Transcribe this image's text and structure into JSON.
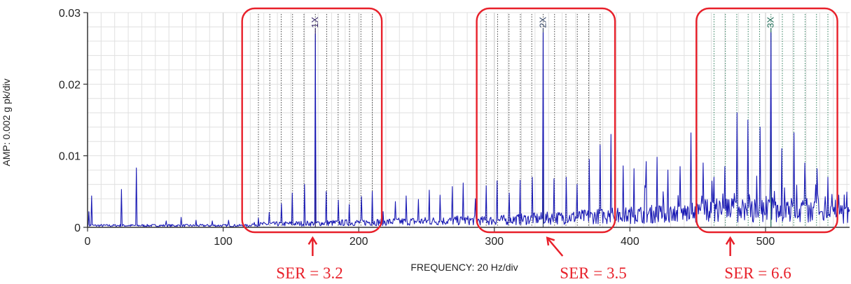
{
  "chart_data": {
    "type": "line",
    "title": "",
    "xlabel": "FREQUENCY: 20 Hz/div",
    "ylabel": "AMP: 0.002 g pk/div",
    "xlim": [
      0,
      562
    ],
    "ylim": [
      0,
      0.03
    ],
    "x_ticks": [
      "0",
      "100",
      "200",
      "300",
      "400",
      "500"
    ],
    "y_ticks": [
      "0",
      "0.01",
      "0.02",
      "0.03"
    ],
    "grid": true,
    "series_color": "#1a1ab4",
    "harmonic_markers": [
      {
        "label": "1X",
        "freq": 168,
        "color": "#3a2a6a"
      },
      {
        "label": "2X",
        "freq": 336,
        "color": "#3a4a6a"
      },
      {
        "label": "3X",
        "freq": 504,
        "color": "#1e6a55"
      }
    ],
    "sideband_spacing_hz": 8.4,
    "sideband_groups": [
      {
        "center": 168,
        "from": 122,
        "to": 214,
        "color": "#444444"
      },
      {
        "center": 336,
        "from": 290,
        "to": 383,
        "color": "#444444"
      },
      {
        "center": 504,
        "from": 458,
        "to": 551,
        "color": "#2e7d5b"
      }
    ],
    "highlight_regions": [
      {
        "from": 114,
        "to": 217,
        "label": "SER = 3.2",
        "arrow_freq": 166
      },
      {
        "from": 287,
        "to": 389,
        "label": "SER = 3.5",
        "arrow_freq": 339
      },
      {
        "from": 449,
        "to": 553,
        "label": "SER = 6.6",
        "arrow_freq": 474
      }
    ],
    "highlight_color": "#e8202a",
    "peaks": [
      {
        "x": 1,
        "y": 0.0022
      },
      {
        "x": 3,
        "y": 0.0044
      },
      {
        "x": 25,
        "y": 0.0053
      },
      {
        "x": 36,
        "y": 0.0083
      },
      {
        "x": 58,
        "y": 0.0009
      },
      {
        "x": 69,
        "y": 0.0014
      },
      {
        "x": 80,
        "y": 0.001
      },
      {
        "x": 92,
        "y": 0.0009
      },
      {
        "x": 104,
        "y": 0.001
      },
      {
        "x": 126,
        "y": 0.0013
      },
      {
        "x": 134,
        "y": 0.0021
      },
      {
        "x": 143,
        "y": 0.0033
      },
      {
        "x": 151,
        "y": 0.0048
      },
      {
        "x": 160,
        "y": 0.006
      },
      {
        "x": 168,
        "y": 0.027
      },
      {
        "x": 176,
        "y": 0.005
      },
      {
        "x": 185,
        "y": 0.0038
      },
      {
        "x": 193,
        "y": 0.0032
      },
      {
        "x": 202,
        "y": 0.0043
      },
      {
        "x": 210,
        "y": 0.005
      },
      {
        "x": 218,
        "y": 0.0022
      },
      {
        "x": 227,
        "y": 0.0036
      },
      {
        "x": 235,
        "y": 0.0044
      },
      {
        "x": 244,
        "y": 0.0039
      },
      {
        "x": 252,
        "y": 0.0052
      },
      {
        "x": 260,
        "y": 0.0045
      },
      {
        "x": 269,
        "y": 0.0057
      },
      {
        "x": 277,
        "y": 0.0062
      },
      {
        "x": 286,
        "y": 0.004
      },
      {
        "x": 294,
        "y": 0.0058
      },
      {
        "x": 302,
        "y": 0.0065
      },
      {
        "x": 311,
        "y": 0.0048
      },
      {
        "x": 319,
        "y": 0.0066
      },
      {
        "x": 328,
        "y": 0.007
      },
      {
        "x": 336,
        "y": 0.0272
      },
      {
        "x": 344,
        "y": 0.0068
      },
      {
        "x": 353,
        "y": 0.007
      },
      {
        "x": 361,
        "y": 0.006
      },
      {
        "x": 370,
        "y": 0.0095
      },
      {
        "x": 378,
        "y": 0.0115
      },
      {
        "x": 386,
        "y": 0.013
      },
      {
        "x": 395,
        "y": 0.0086
      },
      {
        "x": 403,
        "y": 0.0082
      },
      {
        "x": 412,
        "y": 0.0092
      },
      {
        "x": 420,
        "y": 0.0098
      },
      {
        "x": 428,
        "y": 0.008
      },
      {
        "x": 437,
        "y": 0.0085
      },
      {
        "x": 445,
        "y": 0.0132
      },
      {
        "x": 454,
        "y": 0.009
      },
      {
        "x": 462,
        "y": 0.007
      },
      {
        "x": 470,
        "y": 0.0085
      },
      {
        "x": 479,
        "y": 0.016
      },
      {
        "x": 487,
        "y": 0.015
      },
      {
        "x": 496,
        "y": 0.014
      },
      {
        "x": 504,
        "y": 0.0272
      },
      {
        "x": 512,
        "y": 0.011
      },
      {
        "x": 521,
        "y": 0.0132
      },
      {
        "x": 529,
        "y": 0.009
      },
      {
        "x": 538,
        "y": 0.0082
      },
      {
        "x": 546,
        "y": 0.007
      },
      {
        "x": 554,
        "y": 0.0045
      }
    ]
  }
}
